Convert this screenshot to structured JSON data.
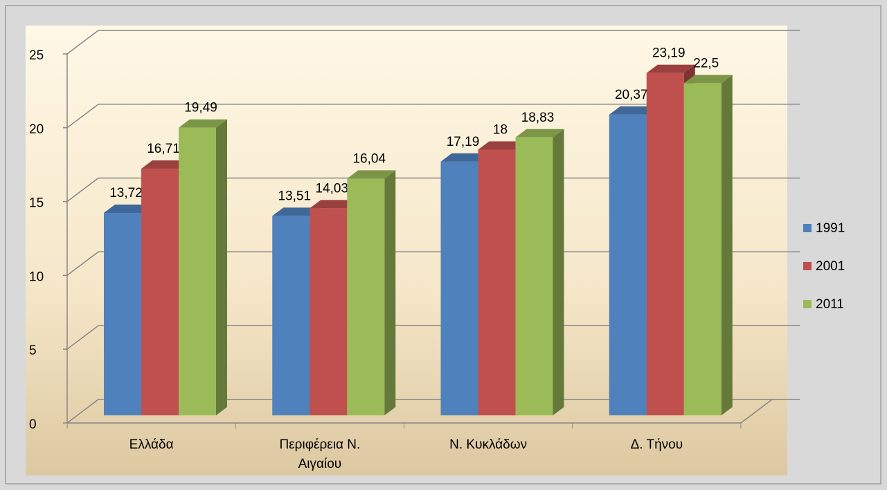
{
  "chart_data": {
    "type": "bar3d",
    "categories": [
      "Ελλάδα",
      "Περιφέρεια Ν. Αιγαίου",
      "Ν. Κυκλάδων",
      "Δ. Τήνου"
    ],
    "series": [
      {
        "name": "1991",
        "color": "#4f81bd",
        "values": [
          13.72,
          13.51,
          17.19,
          20.37
        ],
        "value_labels": [
          "13,72",
          "13,51",
          "17,19",
          "20,37"
        ]
      },
      {
        "name": "2001",
        "color": "#c0504d",
        "values": [
          16.71,
          14.03,
          18,
          23.19
        ],
        "value_labels": [
          "16,71",
          "14,03",
          "18",
          "23,19"
        ]
      },
      {
        "name": "2011",
        "color": "#9bbb59",
        "values": [
          19.49,
          16.04,
          18.83,
          22.5
        ],
        "value_labels": [
          "19,49",
          "16,04",
          "18,83",
          "22,5"
        ]
      }
    ],
    "ylim": [
      0,
      25
    ],
    "yticks": [
      0,
      5,
      10,
      15,
      20,
      25
    ],
    "grid": true,
    "legend": "right"
  }
}
